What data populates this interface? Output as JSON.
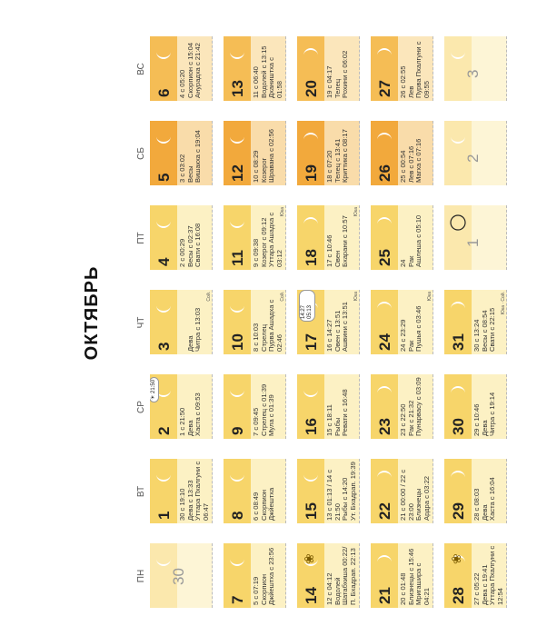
{
  "month_title": "ОКТЯБРЬ",
  "weekdays": [
    "ПН",
    "ВТ",
    "СР",
    "ЧТ",
    "ПТ",
    "СБ",
    "ВС"
  ],
  "weeks": [
    [
      {
        "day": "30",
        "muted": true,
        "theme": "a",
        "moon": "wax",
        "info": ""
      },
      {
        "day": "1",
        "theme": "a",
        "moon": "wax",
        "info": "30 с 19:10\nДева с 13:33\nУттара Пхалгуни с 06:47"
      },
      {
        "day": "2",
        "theme": "a",
        "moon": "wax",
        "info": "1 с 21:50\nДева\nХаста с 09:53",
        "sticker": "eclipse"
      },
      {
        "day": "3",
        "theme": "a",
        "moon": "wax",
        "info": "\nДева\nЧитра с 13:03",
        "note": "Сой."
      },
      {
        "day": "4",
        "theme": "a",
        "moon": "wax",
        "info": "2 с 00:29\nВесы с 02:37\nСвати с 16:08"
      },
      {
        "day": "5",
        "theme": "c",
        "moon": "wax",
        "info": "3 с 03:02\nВесы\nВишакха с 19:04"
      },
      {
        "day": "6",
        "theme": "b",
        "moon": "wax",
        "info": "4 с 05:20\nСкорпион с 15:04\nАнурадха с 21:42"
      }
    ],
    [
      {
        "day": "7",
        "theme": "a",
        "moon": "wax",
        "info": "5 с 07:19\nСкорпион\nДжйештха с 23:56"
      },
      {
        "day": "8",
        "theme": "a",
        "moon": "wax",
        "info": "6 с 08:49\nСкорпион\nДжйештха"
      },
      {
        "day": "9",
        "theme": "a",
        "moon": "wax",
        "info": "7 с 09:45\nСтрелец с 01:39\nМула с 01:39"
      },
      {
        "day": "10",
        "theme": "a",
        "moon": "wax",
        "info": "8 с 10:03\nСтрелец\nПурва Ашадха с 02:46",
        "note": "Сой."
      },
      {
        "day": "11",
        "theme": "a",
        "moon": "wax",
        "info": "9 с 09:38\nКозерог с 09:12\nУттара Ашадха с 03:12",
        "note": "Юка"
      },
      {
        "day": "12",
        "theme": "c",
        "moon": "wax",
        "info": "10 с 08:29\nКозерог\nШравана с 02:56"
      },
      {
        "day": "13",
        "theme": "b",
        "moon": "wax",
        "info": "11 с 06:40\nВодолей с 13:15\nДхаништха с 01:58"
      }
    ],
    [
      {
        "day": "14",
        "theme": "a",
        "moon": "wax",
        "info": "12 с 04:12\nВодолей\nШатабхиша 00:22/\nП. Бхадрап. 22:13",
        "sticker": "flower"
      },
      {
        "day": "15",
        "theme": "a",
        "moon": "wax",
        "info": "13 с 01:13 / 14 с 21:50\nРыбы с 14:20\nУт. Бхадрап. 19:39"
      },
      {
        "day": "16",
        "theme": "a",
        "moon": "wax",
        "info": "15 с 18:11\nРыбы\nРевати с 16:48"
      },
      {
        "day": "17",
        "theme": "a",
        "moon": "wane",
        "info": "16 с 14:27\nОвен с 13:51\nАшвини с 13:51",
        "sticker": "times",
        "note": "Юка"
      },
      {
        "day": "18",
        "theme": "a",
        "moon": "wane",
        "info": "17 с 10:46\nОвен\nБхарани с 10:57",
        "note": "Юка"
      },
      {
        "day": "19",
        "theme": "c",
        "moon": "wane",
        "info": "18 с 07:20\nТелец с 13:41\nКриттика с 08:17"
      },
      {
        "day": "20",
        "theme": "b",
        "moon": "wane",
        "info": "19 с 04:17\nТелец\nРохини с 06:02"
      }
    ],
    [
      {
        "day": "21",
        "theme": "a",
        "moon": "wane",
        "info": "20 с 01:48\nБлизнецы с 15:46\nМригашира с 04:21"
      },
      {
        "day": "22",
        "theme": "a",
        "moon": "wane",
        "info": "21 с 00:00 / 22 с 23:00\nБлизнецы\nАрдра с 03:22"
      },
      {
        "day": "23",
        "theme": "a",
        "moon": "wane",
        "info": "23 с 22:50\nРак с 21:32\nПунарвасу с 03:09"
      },
      {
        "day": "24",
        "theme": "a",
        "moon": "wane",
        "info": "24 с 23:29\nРак\nПушья с 03:46",
        "note": "Юка"
      },
      {
        "day": "25",
        "theme": "a",
        "moon": "wane",
        "info": "24\nРак\nАшлеша с 05:10"
      },
      {
        "day": "26",
        "theme": "c",
        "moon": "wane",
        "info": "25 с 00:54\nЛев с 07:16\nМагха с 07:16"
      },
      {
        "day": "27",
        "theme": "b",
        "moon": "wane",
        "info": "26 с 02:55\nЛев\nПурва Пхалгуни с 09:55"
      }
    ],
    [
      {
        "day": "28",
        "theme": "a",
        "moon": "wane",
        "info": "27 с 05:22\nДева с 19:41\nУттара Пхалгуни с 12:54",
        "sticker": "flower"
      },
      {
        "day": "29",
        "theme": "a",
        "moon": "wane",
        "info": "28 с 08:03\nДева\nХаста с 16:04"
      },
      {
        "day": "30",
        "theme": "a",
        "moon": "wane",
        "info": "29 с 10:46\nДева\nЧитра с 19:14"
      },
      {
        "day": "31",
        "theme": "a",
        "moon": "wane",
        "info": "30 с 13:24\nВесы с 08:54\nСвати с 22:15",
        "note": "Юка · Сой."
      },
      {
        "day": "1",
        "muted": true,
        "theme": "a",
        "moon": "new",
        "info": ""
      },
      {
        "day": "2",
        "muted": true,
        "theme": "c",
        "moon": "wax",
        "info": ""
      },
      {
        "day": "3",
        "muted": true,
        "theme": "b",
        "moon": "wax",
        "info": ""
      }
    ]
  ],
  "sticker_texts": {
    "eclipse_time": "21:50",
    "times_a": "14:27",
    "times_b": "05:13"
  }
}
